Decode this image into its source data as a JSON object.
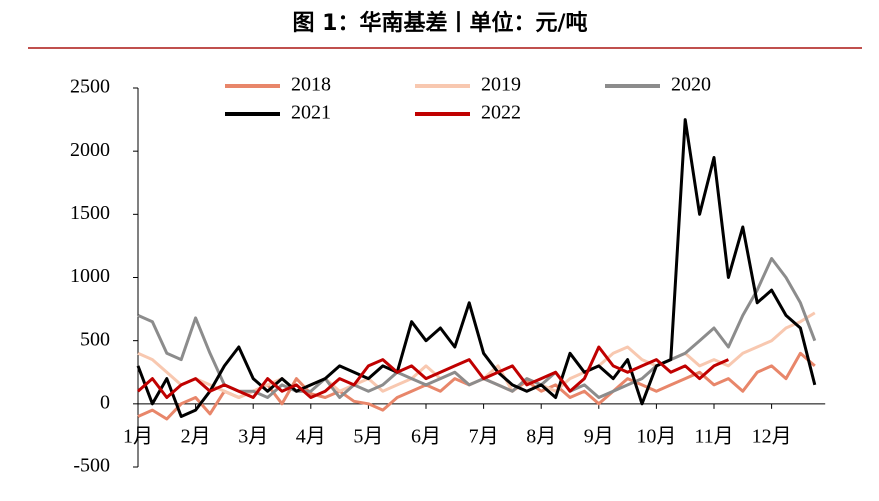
{
  "chart_data": {
    "type": "line",
    "title": "图 1：华南基差丨单位：元/吨",
    "categories": [
      "1月",
      null,
      null,
      null,
      "2月",
      null,
      null,
      null,
      "3月",
      null,
      null,
      null,
      "4月",
      null,
      null,
      null,
      "5月",
      null,
      null,
      null,
      "6月",
      null,
      null,
      null,
      "7月",
      null,
      null,
      null,
      "8月",
      null,
      null,
      null,
      "9月",
      null,
      null,
      null,
      "10月",
      null,
      null,
      null,
      "11月",
      null,
      null,
      null,
      "12月",
      null,
      null,
      null
    ],
    "series": [
      {
        "name": "2018",
        "color": "#e8866a",
        "values": [
          -100,
          -50,
          -120,
          0,
          50,
          -80,
          100,
          50,
          100,
          150,
          0,
          200,
          80,
          50,
          100,
          20,
          0,
          -50,
          50,
          100,
          150,
          100,
          200,
          150,
          200,
          150,
          100,
          180,
          100,
          150,
          50,
          100,
          0,
          100,
          200,
          150,
          100,
          150,
          200,
          250,
          150,
          200,
          100,
          250,
          300,
          200,
          400,
          300
        ]
      },
      {
        "name": "2019",
        "color": "#f8c8b0",
        "values": [
          400,
          350,
          250,
          150,
          200,
          150,
          100,
          50,
          100,
          150,
          200,
          100,
          150,
          200,
          100,
          150,
          200,
          100,
          150,
          200,
          300,
          200,
          250,
          150,
          200,
          300,
          100,
          200,
          150,
          100,
          200,
          250,
          300,
          400,
          450,
          350,
          300,
          350,
          400,
          300,
          350,
          300,
          400,
          450,
          500,
          600,
          650,
          720
        ]
      },
      {
        "name": "2020",
        "color": "#8c8c8c",
        "values": [
          700,
          650,
          400,
          350,
          680,
          400,
          150,
          100,
          100,
          50,
          150,
          100,
          100,
          200,
          50,
          150,
          100,
          150,
          250,
          200,
          150,
          200,
          250,
          150,
          200,
          150,
          100,
          200,
          150,
          250,
          100,
          150,
          50,
          100,
          150,
          200,
          300,
          350,
          400,
          500,
          600,
          450,
          700,
          900,
          1150,
          1000,
          800,
          500
        ]
      },
      {
        "name": "2021",
        "color": "#000000",
        "values": [
          300,
          0,
          200,
          -100,
          -50,
          100,
          300,
          450,
          200,
          100,
          200,
          100,
          150,
          200,
          300,
          250,
          200,
          300,
          250,
          650,
          500,
          600,
          450,
          800,
          400,
          250,
          150,
          100,
          150,
          50,
          400,
          250,
          300,
          200,
          350,
          0,
          300,
          350,
          2250,
          1500,
          1950,
          1000,
          1400,
          800,
          900,
          700,
          600,
          150
        ]
      },
      {
        "name": "2022",
        "color": "#c00000",
        "values": [
          100,
          200,
          50,
          150,
          200,
          100,
          150,
          100,
          50,
          200,
          100,
          150,
          50,
          100,
          200,
          150,
          300,
          350,
          250,
          300,
          200,
          250,
          300,
          350,
          200,
          250,
          300,
          150,
          200,
          250,
          100,
          200,
          450,
          300,
          250,
          300,
          350,
          250,
          300,
          200,
          300,
          350,
          null,
          null,
          null,
          null,
          null,
          null
        ]
      }
    ],
    "ylim": [
      -500,
      2500
    ],
    "yticks": [
      -500,
      0,
      500,
      1000,
      1500,
      2000,
      2500
    ],
    "grid": false,
    "legend": "top"
  }
}
